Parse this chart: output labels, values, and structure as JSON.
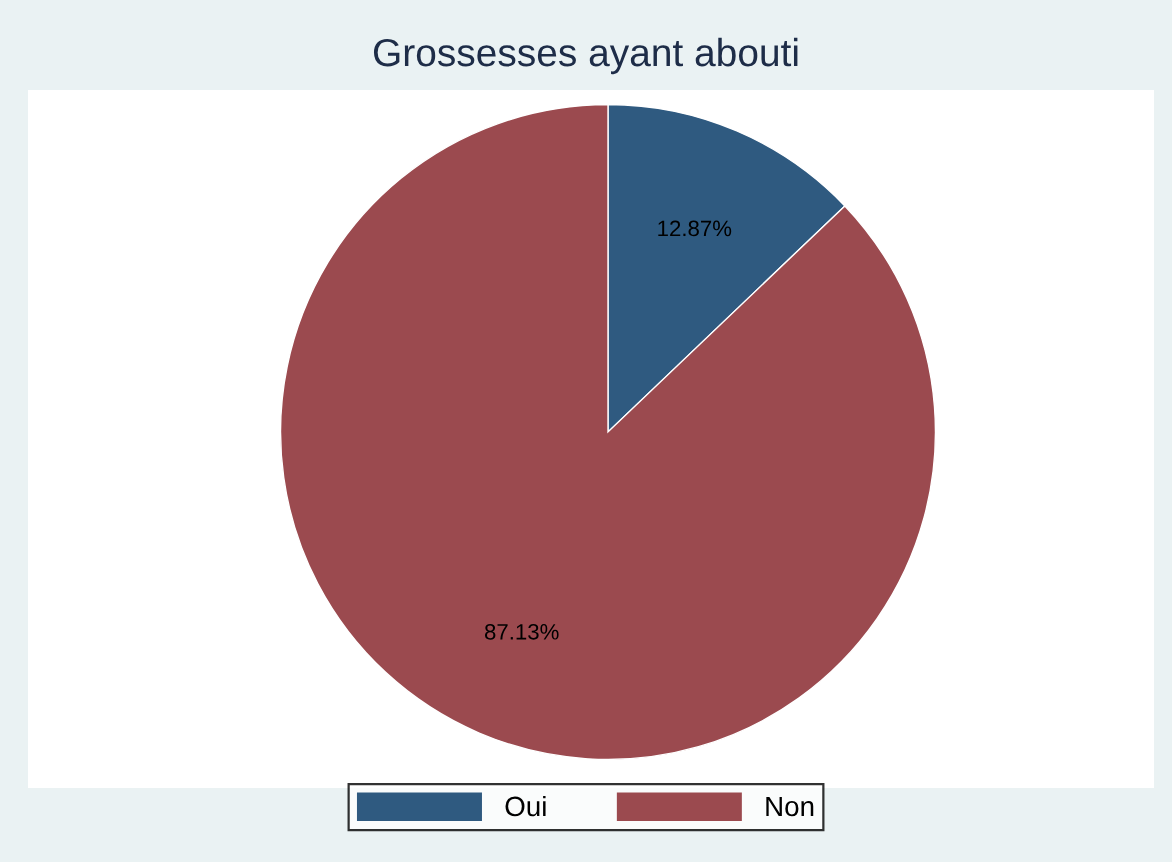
{
  "chart_data": {
    "type": "pie",
    "title": "Grossesses ayant abouti",
    "categories": [
      "Oui",
      "Non"
    ],
    "values": [
      12.87,
      87.13
    ],
    "colors": [
      "#2f5a80",
      "#9b4a4f"
    ],
    "value_labels": [
      "12.87%",
      "87.13%"
    ],
    "legend": "bottom"
  }
}
